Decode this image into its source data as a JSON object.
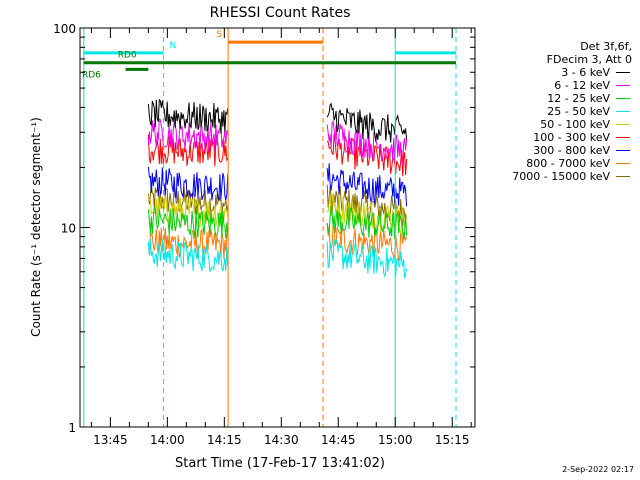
{
  "chart_data": {
    "type": "line",
    "title": "RHESSI Count Rates",
    "xlabel": "Start Time (17-Feb-17 13:41:02)",
    "ylabel": "Count Rate (s⁻¹ detector segment⁻¹)",
    "yscale": "log",
    "ylim": [
      1,
      100
    ],
    "y_ticks": [
      "1",
      "10",
      "100"
    ],
    "xlim": [
      "13:37",
      "15:21"
    ],
    "x_ticks": [
      "13:45",
      "14:00",
      "14:15",
      "14:30",
      "14:45",
      "15:00",
      "15:15"
    ],
    "grid": false,
    "legend_placement": "right",
    "legend_header": [
      "Det 3f,6f,",
      "FDecim 3, Att 0"
    ],
    "data_gaps": [
      [
        "14:16",
        "14:42"
      ]
    ],
    "series": [
      {
        "name": "3 - 6 keV",
        "color": "#000000",
        "x": [
          "13:55",
          "14:05",
          "14:16",
          "14:42",
          "14:50",
          "15:03"
        ],
        "values": [
          37,
          36,
          35,
          37,
          33,
          30
        ]
      },
      {
        "name": "6 - 12 keV",
        "color": "#ee00ee",
        "x": [
          "13:55",
          "14:05",
          "14:16",
          "14:42",
          "14:50",
          "15:03"
        ],
        "values": [
          30,
          29,
          28,
          30,
          27,
          24
        ]
      },
      {
        "name": "12 - 25 keV",
        "color": "#00cc00",
        "x": [
          "13:55",
          "14:05",
          "14:16",
          "14:42",
          "14:50",
          "15:03"
        ],
        "values": [
          11,
          10.5,
          10.5,
          11,
          10.5,
          10
        ]
      },
      {
        "name": "25 - 50 keV",
        "color": "#00e5e5",
        "x": [
          "13:55",
          "14:05",
          "14:16",
          "14:42",
          "14:50",
          "15:03"
        ],
        "values": [
          7.5,
          7.2,
          7,
          7.5,
          7,
          6.5
        ]
      },
      {
        "name": "50 - 100 keV",
        "color": "#cccc00",
        "x": [
          "13:55",
          "14:05",
          "14:16",
          "14:42",
          "14:50",
          "15:03"
        ],
        "values": [
          12.5,
          12,
          12,
          13,
          12,
          11
        ]
      },
      {
        "name": "100 - 300 keV",
        "color": "#ff0000",
        "x": [
          "13:55",
          "14:05",
          "14:16",
          "14:42",
          "14:50",
          "15:03"
        ],
        "values": [
          25,
          24,
          24,
          26,
          23,
          21
        ]
      },
      {
        "name": "300 - 800 keV",
        "color": "#0000ee",
        "x": [
          "13:55",
          "14:05",
          "14:16",
          "14:42",
          "14:50",
          "15:03"
        ],
        "values": [
          17,
          16.5,
          16,
          18,
          16,
          15
        ]
      },
      {
        "name": "800 - 7000 keV",
        "color": "#ff7700",
        "x": [
          "13:55",
          "14:05",
          "14:16",
          "14:42",
          "14:50",
          "15:03"
        ],
        "values": [
          8.5,
          8.3,
          8.2,
          9,
          8.5,
          8
        ]
      },
      {
        "name": "7000 - 15000 keV",
        "color": "#886600",
        "x": [
          "13:55",
          "14:05",
          "14:16",
          "14:42",
          "14:50",
          "15:03"
        ],
        "values": [
          14,
          13.5,
          13,
          14,
          13,
          12
        ]
      }
    ],
    "flags": [
      {
        "label": "N",
        "color": "#00e5e5",
        "value": 75,
        "segments": [
          [
            "13:38",
            "13:59"
          ],
          [
            "15:00",
            "15:16"
          ]
        ]
      },
      {
        "label": "S",
        "color": "#ff7700",
        "value": 85,
        "segments": [
          [
            "14:16",
            "14:41"
          ]
        ]
      },
      {
        "label": "RD0",
        "color": "#007700",
        "value": 67,
        "segments": [
          [
            "13:38",
            "15:16"
          ]
        ]
      },
      {
        "label": "RD6",
        "color": "#007700",
        "value": 62,
        "segments": [
          [
            "13:49",
            "13:55"
          ]
        ]
      }
    ],
    "vertical_markers": [
      {
        "time": "13:38",
        "color": "#00e5e5",
        "style": "solid"
      },
      {
        "time": "13:59",
        "color": "#00e5e5",
        "style": "dashed"
      },
      {
        "time": "14:16",
        "color": "#ff7700",
        "style": "solid"
      },
      {
        "time": "14:41",
        "color": "#ff7700",
        "style": "dashed"
      },
      {
        "time": "15:00",
        "color": "#00e5e5",
        "style": "solid"
      },
      {
        "time": "15:16",
        "color": "#00e5e5",
        "style": "dashed"
      }
    ]
  },
  "datestamp": "2-Sep-2022 02:17"
}
